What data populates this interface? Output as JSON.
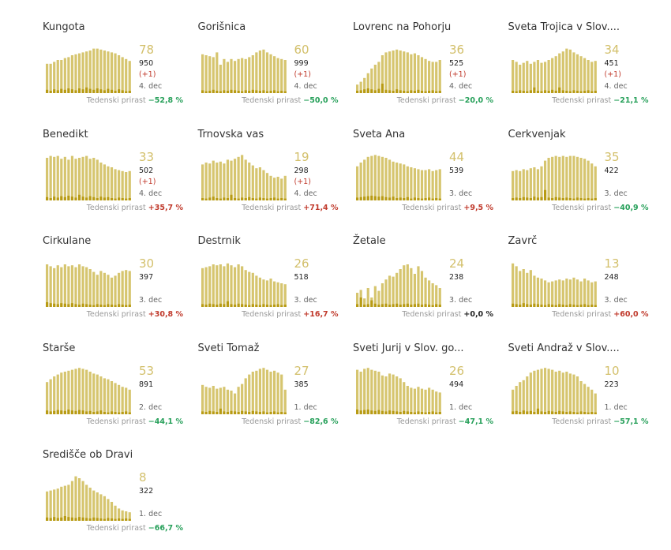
{
  "colors": {
    "bar_main": "#d6c56f",
    "bar_new": "#b89b14",
    "active_text": "#d3c06c",
    "neg": "#27a05a",
    "pos": "#c0392b"
  },
  "weekly_label": "Tedenski prirast",
  "chart_data": [
    {
      "type": "bar",
      "title": "Kungota",
      "active": "78",
      "total": "950",
      "delta": "(+1)",
      "date": "4. dec",
      "weekly": "−52,8 %",
      "sign": "neg",
      "values": [
        0.62,
        0.62,
        0.66,
        0.7,
        0.7,
        0.74,
        0.76,
        0.8,
        0.82,
        0.84,
        0.86,
        0.88,
        0.9,
        0.94,
        0.94,
        0.92,
        0.9,
        0.88,
        0.86,
        0.84,
        0.8,
        0.76,
        0.72,
        0.68
      ],
      "new": [
        0.07,
        0.05,
        0.08,
        0.06,
        0.09,
        0.07,
        0.1,
        0.08,
        0.06,
        0.1,
        0.08,
        0.12,
        0.09,
        0.07,
        0.1,
        0.08,
        0.06,
        0.09,
        0.07,
        0.05,
        0.08,
        0.06,
        0.04,
        0.05
      ]
    },
    {
      "type": "bar",
      "title": "Gorišnica",
      "active": "60",
      "total": "999",
      "delta": "(+1)",
      "date": "4. dec",
      "weekly": "−50,0 %",
      "sign": "neg",
      "values": [
        0.82,
        0.8,
        0.78,
        0.76,
        0.86,
        0.6,
        0.72,
        0.66,
        0.72,
        0.68,
        0.72,
        0.74,
        0.72,
        0.76,
        0.8,
        0.86,
        0.9,
        0.92,
        0.86,
        0.82,
        0.78,
        0.74,
        0.72,
        0.7
      ],
      "new": [
        0.06,
        0.04,
        0.05,
        0.07,
        0.05,
        0.04,
        0.06,
        0.05,
        0.07,
        0.06,
        0.05,
        0.04,
        0.06,
        0.05,
        0.07,
        0.06,
        0.05,
        0.06,
        0.04,
        0.05,
        0.06,
        0.04,
        0.05,
        0.04
      ]
    },
    {
      "type": "bar",
      "title": "Lovrenc na Pohorju",
      "active": "36",
      "total": "525",
      "delta": "(+1)",
      "date": "4. dec",
      "weekly": "−20,0 %",
      "sign": "neg",
      "values": [
        0.18,
        0.24,
        0.32,
        0.42,
        0.52,
        0.6,
        0.66,
        0.8,
        0.86,
        0.88,
        0.9,
        0.92,
        0.9,
        0.88,
        0.86,
        0.82,
        0.84,
        0.8,
        0.76,
        0.72,
        0.68,
        0.66,
        0.66,
        0.7
      ],
      "new": [
        0.05,
        0.06,
        0.08,
        0.1,
        0.08,
        0.06,
        0.09,
        0.2,
        0.07,
        0.06,
        0.05,
        0.08,
        0.06,
        0.05,
        0.04,
        0.06,
        0.05,
        0.07,
        0.05,
        0.04,
        0.05,
        0.06,
        0.04,
        0.05
      ]
    },
    {
      "type": "bar",
      "title": "Sveta Trojica v Slov....",
      "active": "34",
      "total": "451",
      "delta": "(+1)",
      "date": "4. dec",
      "weekly": "−21,1 %",
      "sign": "neg",
      "values": [
        0.7,
        0.66,
        0.6,
        0.64,
        0.68,
        0.62,
        0.66,
        0.7,
        0.64,
        0.66,
        0.7,
        0.74,
        0.78,
        0.84,
        0.88,
        0.94,
        0.92,
        0.86,
        0.82,
        0.78,
        0.74,
        0.7,
        0.66,
        0.68
      ],
      "new": [
        0.05,
        0.04,
        0.06,
        0.05,
        0.04,
        0.06,
        0.12,
        0.05,
        0.04,
        0.06,
        0.05,
        0.07,
        0.05,
        0.12,
        0.06,
        0.05,
        0.04,
        0.06,
        0.05,
        0.04,
        0.05,
        0.06,
        0.04,
        0.05
      ]
    },
    {
      "type": "bar",
      "title": "Benedikt",
      "active": "33",
      "total": "502",
      "delta": "(+1)",
      "date": "4. dec",
      "weekly": "+35,7 %",
      "sign": "pos",
      "values": [
        0.9,
        0.94,
        0.92,
        0.94,
        0.88,
        0.92,
        0.86,
        0.94,
        0.88,
        0.9,
        0.92,
        0.94,
        0.88,
        0.9,
        0.86,
        0.8,
        0.76,
        0.72,
        0.7,
        0.66,
        0.64,
        0.62,
        0.6,
        0.62
      ],
      "new": [
        0.07,
        0.05,
        0.08,
        0.06,
        0.09,
        0.07,
        0.1,
        0.08,
        0.06,
        0.12,
        0.08,
        0.06,
        0.09,
        0.07,
        0.05,
        0.08,
        0.06,
        0.07,
        0.05,
        0.04,
        0.06,
        0.05,
        0.04,
        0.05
      ]
    },
    {
      "type": "bar",
      "title": "Trnovska vas",
      "active": "19",
      "total": "298",
      "delta": "(+1)",
      "date": "4. dec",
      "weekly": "+71,4 %",
      "sign": "pos",
      "values": [
        0.76,
        0.8,
        0.78,
        0.84,
        0.8,
        0.82,
        0.78,
        0.86,
        0.84,
        0.88,
        0.92,
        0.96,
        0.86,
        0.8,
        0.74,
        0.68,
        0.7,
        0.64,
        0.58,
        0.52,
        0.48,
        0.5,
        0.46,
        0.52
      ],
      "new": [
        0.05,
        0.04,
        0.06,
        0.08,
        0.05,
        0.04,
        0.06,
        0.05,
        0.12,
        0.05,
        0.04,
        0.06,
        0.05,
        0.07,
        0.05,
        0.04,
        0.06,
        0.05,
        0.04,
        0.05,
        0.06,
        0.04,
        0.05,
        0.04
      ]
    },
    {
      "type": "bar",
      "title": "Sveta Ana",
      "active": "44",
      "total": "539",
      "delta": "",
      "date": "3. dec",
      "weekly": "+9,5 %",
      "sign": "pos",
      "values": [
        0.72,
        0.8,
        0.86,
        0.92,
        0.94,
        0.96,
        0.94,
        0.92,
        0.9,
        0.86,
        0.82,
        0.8,
        0.78,
        0.76,
        0.72,
        0.7,
        0.68,
        0.66,
        0.64,
        0.64,
        0.66,
        0.62,
        0.64,
        0.66
      ],
      "new": [
        0.06,
        0.07,
        0.08,
        0.09,
        0.1,
        0.09,
        0.08,
        0.09,
        0.07,
        0.06,
        0.08,
        0.05,
        0.06,
        0.05,
        0.07,
        0.04,
        0.06,
        0.05,
        0.04,
        0.05,
        0.06,
        0.04,
        0.05,
        0.04
      ]
    },
    {
      "type": "bar",
      "title": "Cerkvenjak",
      "active": "35",
      "total": "422",
      "delta": "",
      "date": "3. dec",
      "weekly": "−40,9 %",
      "sign": "neg",
      "values": [
        0.62,
        0.64,
        0.62,
        0.66,
        0.64,
        0.68,
        0.7,
        0.66,
        0.72,
        0.84,
        0.9,
        0.92,
        0.94,
        0.92,
        0.94,
        0.92,
        0.94,
        0.94,
        0.92,
        0.9,
        0.88,
        0.84,
        0.78,
        0.72
      ],
      "new": [
        0.05,
        0.06,
        0.05,
        0.07,
        0.06,
        0.05,
        0.08,
        0.06,
        0.07,
        0.22,
        0.06,
        0.05,
        0.07,
        0.06,
        0.05,
        0.06,
        0.05,
        0.04,
        0.06,
        0.05,
        0.04,
        0.05,
        0.04,
        0.05
      ]
    },
    {
      "type": "bar",
      "title": "Cirkulane",
      "active": "30",
      "total": "397",
      "delta": "",
      "date": "3. dec",
      "weekly": "+30,8 %",
      "sign": "pos",
      "values": [
        0.9,
        0.86,
        0.82,
        0.88,
        0.84,
        0.9,
        0.86,
        0.88,
        0.84,
        0.9,
        0.86,
        0.84,
        0.8,
        0.74,
        0.68,
        0.76,
        0.72,
        0.68,
        0.62,
        0.66,
        0.72,
        0.76,
        0.78,
        0.76
      ],
      "new": [
        0.1,
        0.08,
        0.07,
        0.06,
        0.08,
        0.07,
        0.06,
        0.08,
        0.06,
        0.05,
        0.07,
        0.06,
        0.05,
        0.04,
        0.06,
        0.05,
        0.04,
        0.06,
        0.05,
        0.04,
        0.06,
        0.05,
        0.04,
        0.05
      ]
    },
    {
      "type": "bar",
      "title": "Destrnik",
      "active": "26",
      "total": "518",
      "delta": "",
      "date": "3. dec",
      "weekly": "+16,7 %",
      "sign": "pos",
      "values": [
        0.82,
        0.84,
        0.86,
        0.9,
        0.88,
        0.9,
        0.86,
        0.92,
        0.88,
        0.84,
        0.9,
        0.86,
        0.78,
        0.74,
        0.72,
        0.66,
        0.62,
        0.58,
        0.56,
        0.6,
        0.54,
        0.52,
        0.5,
        0.48
      ],
      "new": [
        0.06,
        0.05,
        0.07,
        0.06,
        0.05,
        0.07,
        0.06,
        0.12,
        0.06,
        0.05,
        0.07,
        0.06,
        0.05,
        0.04,
        0.06,
        0.05,
        0.04,
        0.06,
        0.05,
        0.04,
        0.05,
        0.06,
        0.04,
        0.05
      ]
    },
    {
      "type": "bar",
      "title": "Žetale",
      "active": "24",
      "total": "238",
      "delta": "",
      "date": "3. dec",
      "weekly": "+0,0 %",
      "sign": "zero",
      "values": [
        0.3,
        0.36,
        0.18,
        0.4,
        0.2,
        0.44,
        0.34,
        0.5,
        0.58,
        0.66,
        0.64,
        0.72,
        0.8,
        0.88,
        0.9,
        0.82,
        0.7,
        0.86,
        0.76,
        0.62,
        0.56,
        0.5,
        0.46,
        0.4
      ],
      "new": [
        0.06,
        0.2,
        0.05,
        0.06,
        0.14,
        0.07,
        0.05,
        0.06,
        0.07,
        0.05,
        0.06,
        0.07,
        0.05,
        0.06,
        0.07,
        0.05,
        0.06,
        0.07,
        0.05,
        0.06,
        0.05,
        0.04,
        0.06,
        0.05
      ]
    },
    {
      "type": "bar",
      "title": "Zavrč",
      "active": "13",
      "total": "248",
      "delta": "",
      "date": "3. dec",
      "weekly": "+60,0 %",
      "sign": "pos",
      "values": [
        0.92,
        0.86,
        0.76,
        0.8,
        0.72,
        0.78,
        0.66,
        0.62,
        0.6,
        0.56,
        0.52,
        0.54,
        0.56,
        0.58,
        0.56,
        0.6,
        0.58,
        0.62,
        0.58,
        0.54,
        0.6,
        0.56,
        0.52,
        0.54
      ],
      "new": [
        0.07,
        0.06,
        0.05,
        0.08,
        0.06,
        0.05,
        0.07,
        0.06,
        0.05,
        0.04,
        0.06,
        0.05,
        0.04,
        0.06,
        0.05,
        0.04,
        0.06,
        0.05,
        0.04,
        0.05,
        0.06,
        0.04,
        0.05,
        0.04
      ]
    },
    {
      "type": "bar",
      "title": "Starše",
      "active": "53",
      "total": "891",
      "delta": "",
      "date": "2. dec",
      "weekly": "−44,1 %",
      "sign": "neg",
      "values": [
        0.68,
        0.74,
        0.8,
        0.84,
        0.88,
        0.9,
        0.92,
        0.94,
        0.96,
        0.98,
        0.96,
        0.94,
        0.9,
        0.86,
        0.84,
        0.8,
        0.76,
        0.74,
        0.7,
        0.66,
        0.62,
        0.58,
        0.56,
        0.52
      ],
      "new": [
        0.08,
        0.06,
        0.07,
        0.09,
        0.08,
        0.07,
        0.1,
        0.08,
        0.07,
        0.09,
        0.08,
        0.06,
        0.07,
        0.05,
        0.06,
        0.08,
        0.05,
        0.04,
        0.06,
        0.05,
        0.04,
        0.05,
        0.06,
        0.04
      ]
    },
    {
      "type": "bar",
      "title": "Sveti Tomaž",
      "active": "27",
      "total": "385",
      "delta": "",
      "date": "1. dec",
      "weekly": "−82,6 %",
      "sign": "neg",
      "values": [
        0.62,
        0.58,
        0.56,
        0.6,
        0.54,
        0.56,
        0.58,
        0.52,
        0.5,
        0.44,
        0.58,
        0.64,
        0.76,
        0.84,
        0.9,
        0.92,
        0.96,
        0.98,
        0.94,
        0.9,
        0.92,
        0.88,
        0.84,
        0.52
      ],
      "new": [
        0.06,
        0.05,
        0.07,
        0.06,
        0.05,
        0.12,
        0.06,
        0.05,
        0.07,
        0.06,
        0.05,
        0.07,
        0.06,
        0.05,
        0.07,
        0.06,
        0.05,
        0.06,
        0.04,
        0.05,
        0.06,
        0.04,
        0.05,
        0.04
      ]
    },
    {
      "type": "bar",
      "title": "Sveti Jurij v Slov. go...",
      "active": "26",
      "total": "494",
      "delta": "",
      "date": "1. dec",
      "weekly": "−47,1 %",
      "sign": "neg",
      "values": [
        0.94,
        0.9,
        0.96,
        0.98,
        0.94,
        0.92,
        0.9,
        0.82,
        0.8,
        0.86,
        0.84,
        0.8,
        0.76,
        0.68,
        0.6,
        0.56,
        0.54,
        0.58,
        0.54,
        0.52,
        0.56,
        0.52,
        0.48,
        0.46
      ],
      "new": [
        0.1,
        0.08,
        0.09,
        0.1,
        0.08,
        0.07,
        0.09,
        0.07,
        0.06,
        0.08,
        0.07,
        0.06,
        0.05,
        0.07,
        0.06,
        0.05,
        0.04,
        0.06,
        0.05,
        0.04,
        0.05,
        0.06,
        0.04,
        0.05
      ]
    },
    {
      "type": "bar",
      "title": "Sveti Andraž v Slov....",
      "active": "10",
      "total": "223",
      "delta": "",
      "date": "1. dec",
      "weekly": "−57,1 %",
      "sign": "neg",
      "values": [
        0.52,
        0.6,
        0.68,
        0.72,
        0.8,
        0.88,
        0.92,
        0.94,
        0.96,
        0.98,
        0.96,
        0.94,
        0.9,
        0.92,
        0.88,
        0.9,
        0.86,
        0.84,
        0.8,
        0.7,
        0.64,
        0.58,
        0.52,
        0.44
      ],
      "new": [
        0.06,
        0.07,
        0.05,
        0.08,
        0.06,
        0.07,
        0.05,
        0.12,
        0.06,
        0.05,
        0.07,
        0.06,
        0.05,
        0.07,
        0.06,
        0.05,
        0.06,
        0.05,
        0.04,
        0.06,
        0.05,
        0.04,
        0.05,
        0.04
      ]
    },
    {
      "type": "bar",
      "title": "Središče ob Dravi",
      "active": "8",
      "total": "322",
      "delta": "",
      "date": "1. dec",
      "weekly": "−66,7 %",
      "sign": "neg",
      "values": [
        0.62,
        0.64,
        0.66,
        0.68,
        0.72,
        0.74,
        0.76,
        0.84,
        0.94,
        0.9,
        0.84,
        0.76,
        0.7,
        0.64,
        0.6,
        0.56,
        0.52,
        0.46,
        0.4,
        0.32,
        0.26,
        0.22,
        0.2,
        0.18
      ],
      "new": [
        0.07,
        0.06,
        0.08,
        0.06,
        0.07,
        0.1,
        0.08,
        0.07,
        0.06,
        0.08,
        0.07,
        0.06,
        0.05,
        0.07,
        0.06,
        0.05,
        0.04,
        0.06,
        0.05,
        0.04,
        0.05,
        0.04,
        0.05,
        0.04
      ]
    }
  ]
}
